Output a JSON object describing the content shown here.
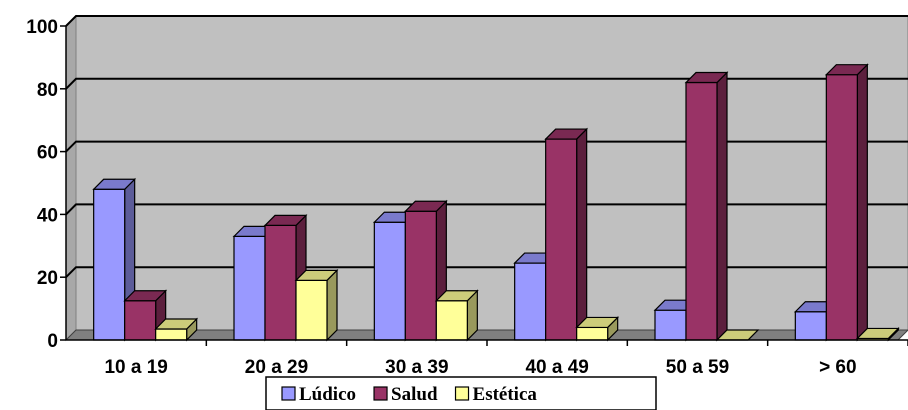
{
  "chart_data": {
    "type": "bar",
    "categories": [
      "10 a 19",
      "20 a 29",
      "30 a 39",
      "40 a 49",
      "50 a 59",
      "> 60"
    ],
    "series": [
      {
        "name": "Lúdico",
        "values": [
          48,
          33,
          37.5,
          24.5,
          9.5,
          9
        ],
        "color": "#9999FF"
      },
      {
        "name": "Salud",
        "values": [
          12.5,
          36.5,
          41,
          64,
          82,
          84.5
        ],
        "color": "#993366"
      },
      {
        "name": "Estética",
        "values": [
          3.5,
          19,
          12.5,
          4,
          0,
          0.5
        ],
        "color": "#FFFF99"
      }
    ],
    "ylim": [
      0,
      100
    ],
    "yticks": [
      0,
      20,
      40,
      60,
      80,
      100
    ],
    "grid": true,
    "legend": "bottom"
  }
}
